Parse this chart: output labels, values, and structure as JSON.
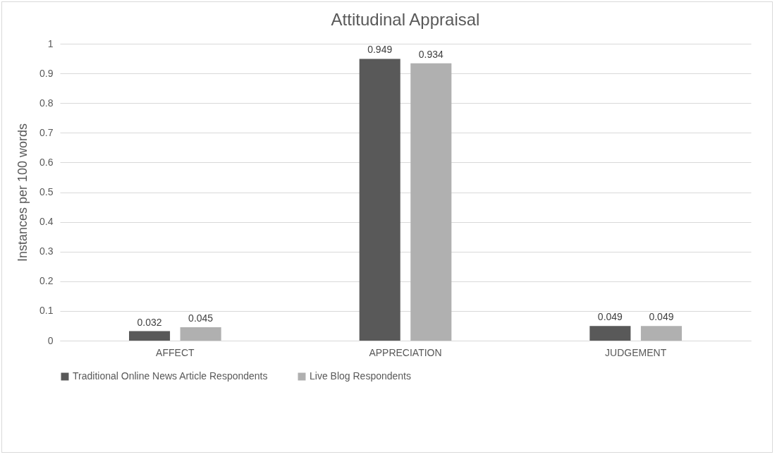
{
  "chart_data": {
    "type": "bar",
    "title": "Attitudinal Appraisal",
    "ylabel": "Instances per 100 words",
    "categories": [
      "AFFECT",
      "APPRECIATION",
      "JUDGEMENT"
    ],
    "series": [
      {
        "name": "Traditional Online News Article Respondents",
        "color": "#595959",
        "values": [
          0.032,
          0.949,
          0.049
        ]
      },
      {
        "name": "Live Blog Respondents",
        "color": "#b0b0b0",
        "values": [
          0.045,
          0.934,
          0.049
        ]
      }
    ],
    "ylim": [
      0,
      1
    ],
    "yticks": [
      0,
      0.1,
      0.2,
      0.3,
      0.4,
      0.5,
      0.6,
      0.7,
      0.8,
      0.9,
      1
    ],
    "grid": "y",
    "legend": "bottom",
    "data_labels": true
  }
}
